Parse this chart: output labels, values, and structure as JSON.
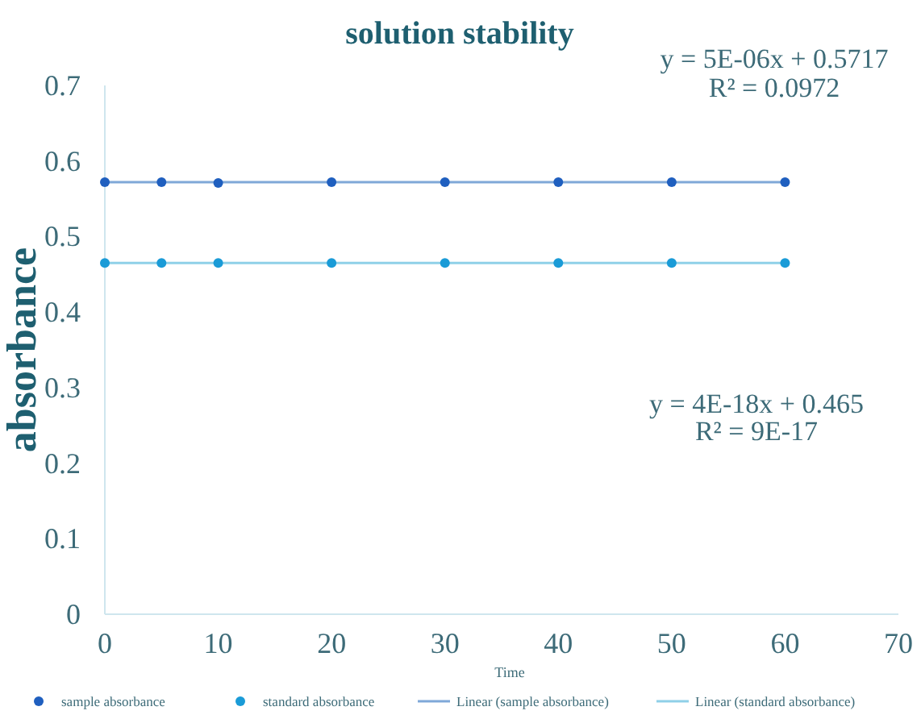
{
  "chart_data": {
    "type": "scatter",
    "title": "solution stability",
    "xlabel": "Time",
    "ylabel": "absorbance",
    "xlim": [
      0,
      70
    ],
    "xticks": [
      0,
      10,
      20,
      30,
      40,
      50,
      60,
      70
    ],
    "ylim": [
      0,
      0.7
    ],
    "yticks": [
      0,
      0.1,
      0.2,
      0.3,
      0.4,
      0.5,
      0.6,
      0.7
    ],
    "grid": false,
    "legend": "bottom",
    "series": [
      {
        "name": "sample absorbance",
        "marker": "circle",
        "color": "#1f5fbf",
        "x": [
          0,
          5,
          10,
          20,
          30,
          40,
          50,
          60
        ],
        "values": [
          0.572,
          0.572,
          0.571,
          0.572,
          0.572,
          0.572,
          0.572,
          0.572
        ]
      },
      {
        "name": "standard absorbance",
        "marker": "circle",
        "color": "#1a9bd7",
        "x": [
          0,
          5,
          10,
          20,
          30,
          40,
          50,
          60
        ],
        "values": [
          0.465,
          0.465,
          0.465,
          0.465,
          0.465,
          0.465,
          0.465,
          0.465
        ]
      },
      {
        "name": "Linear (sample absorbance)",
        "type": "line",
        "color": "#7fa8d8",
        "x": [
          0,
          60
        ],
        "values": [
          0.572,
          0.572
        ]
      },
      {
        "name": "Linear (standard absorbance)",
        "type": "line",
        "color": "#8fd0e8",
        "x": [
          0,
          60
        ],
        "values": [
          0.465,
          0.465
        ]
      }
    ],
    "annotations": [
      "y = 5E-06x + 0.5717",
      "R² = 0.0972",
      "y = 4E-18x + 0.465",
      "R² = 9E-17"
    ]
  }
}
